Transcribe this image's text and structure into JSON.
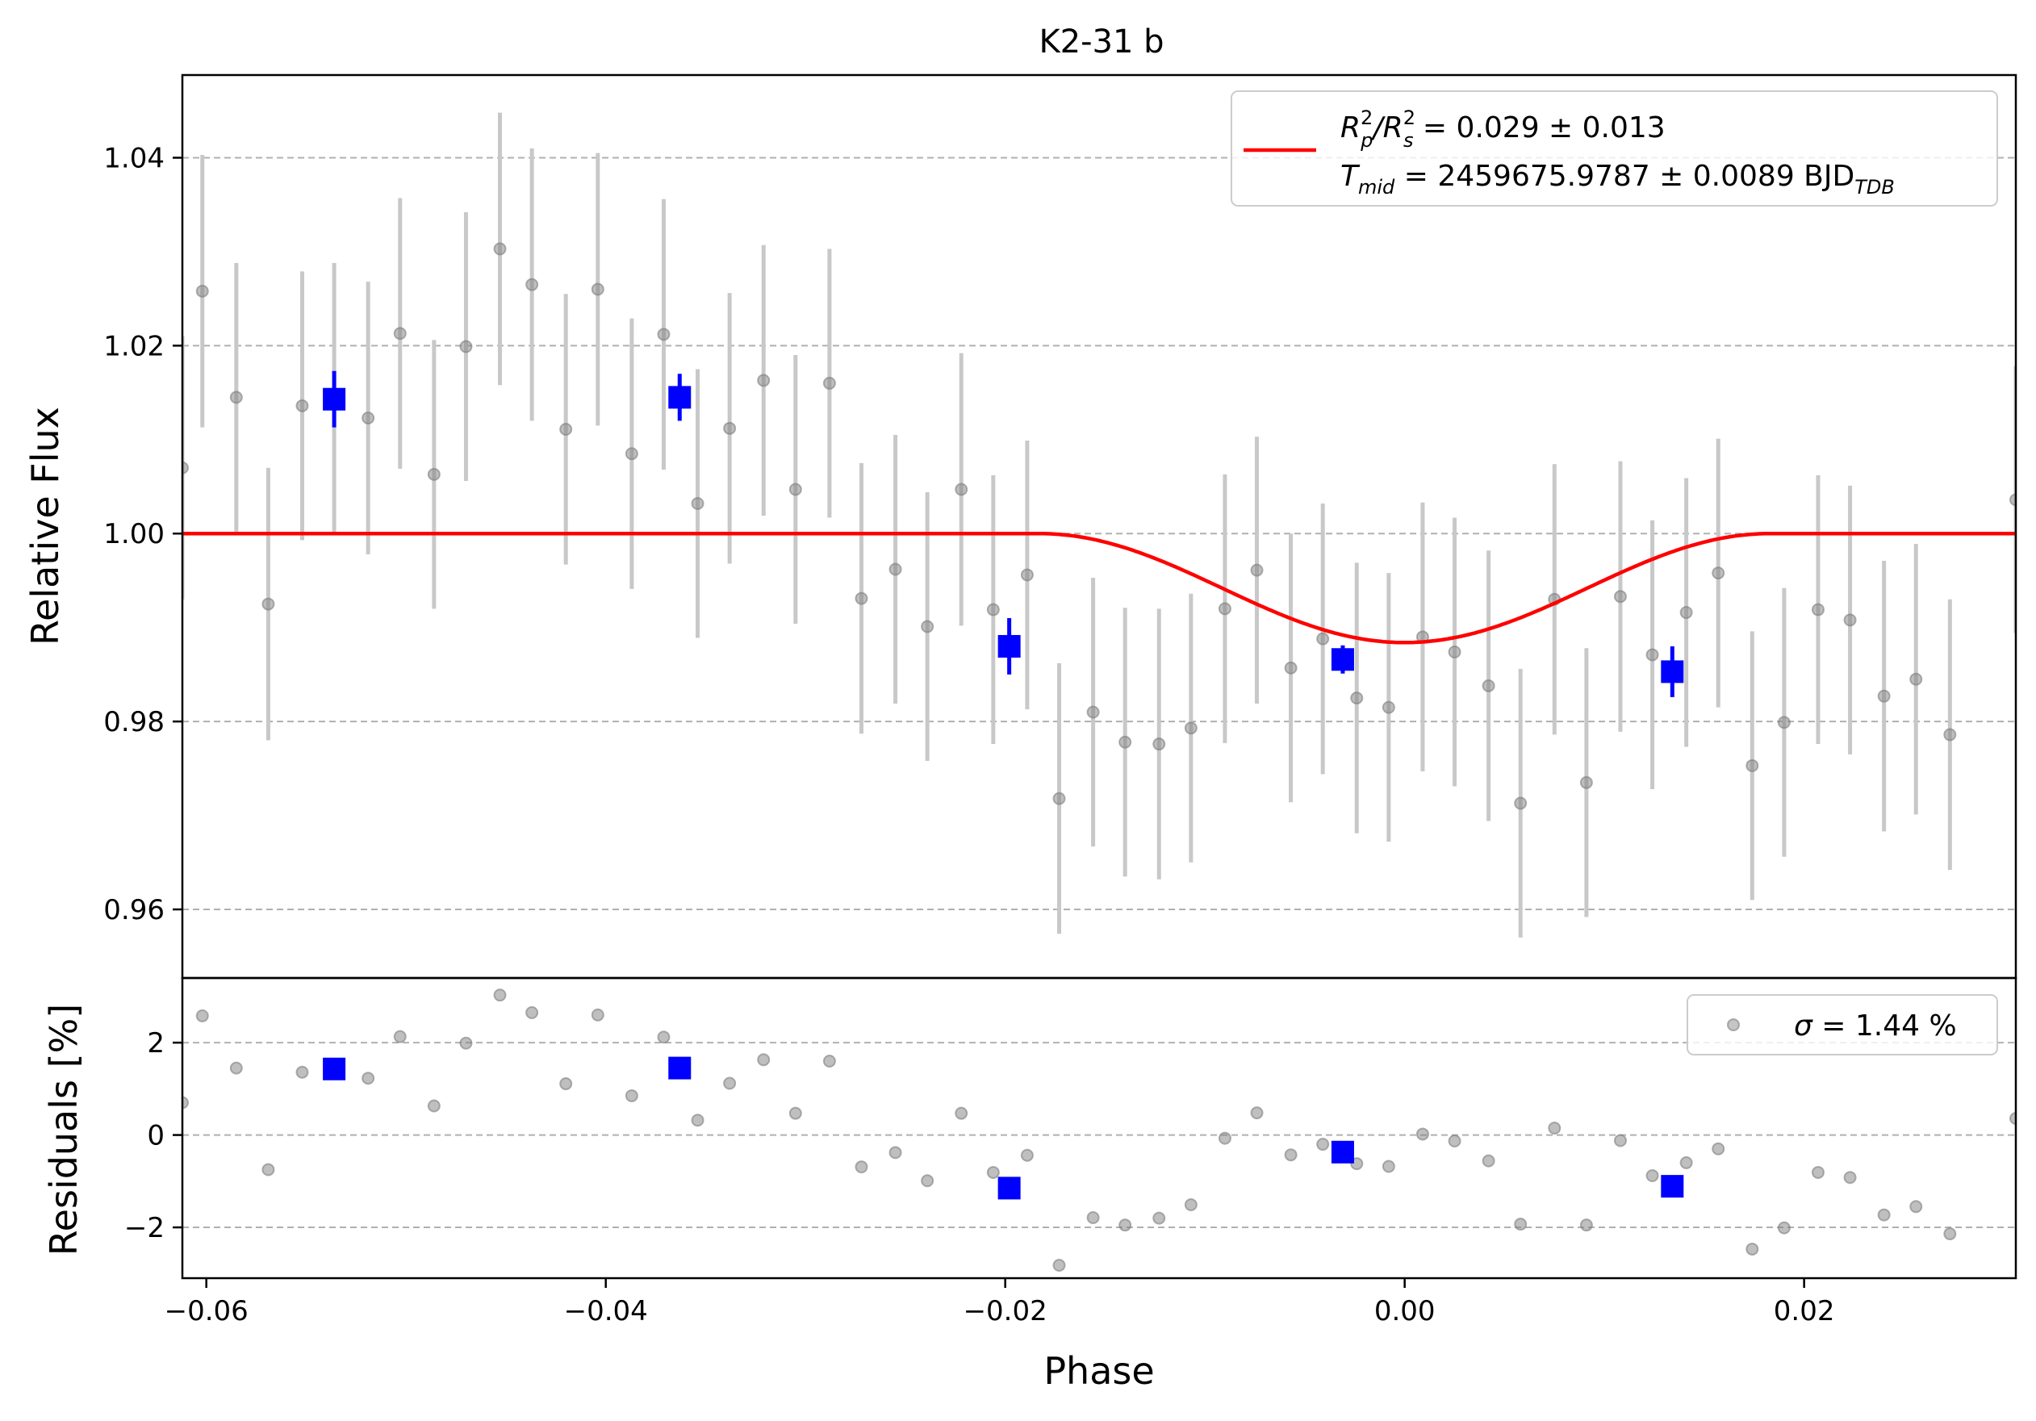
{
  "colors": {
    "raw": "#7f7f7f",
    "raw_errorbar": "#c8c8c8",
    "binned": "#0000ff",
    "model": "#ff0000",
    "grid": "#b0b0b0"
  },
  "chart_data": [
    {
      "panel": "top",
      "type": "scatter",
      "title": "K2-31 b",
      "xlabel": "",
      "ylabel": "Relative Flux",
      "xlim": [
        -0.0612,
        0.0306
      ],
      "ylim": [
        0.9527,
        1.0488
      ],
      "yticks": [
        0.96,
        0.98,
        1.0,
        1.02,
        1.04
      ],
      "ytick_labels": [
        "0.96",
        "0.98",
        "1.00",
        "1.02",
        "1.04"
      ],
      "grid": "horizontal dashed",
      "legend": {
        "placement": "top-right",
        "line1_prefix": "R",
        "line1_sup1": "2",
        "line1_sub1": "p",
        "line1_mid": "/R",
        "line1_sup2": "2",
        "line1_sub2": "s",
        "line1_value": " = 0.029 ± 0.013",
        "line2_prefix": "T",
        "line2_sub": "mid",
        "line2_value": " = 2459675.9787 ± 0.0089 BJD",
        "line2_unit_sub": "TDB"
      },
      "raw": {
        "x": [
          -0.0612,
          -0.0602,
          -0.0585,
          -0.0569,
          -0.0552,
          -0.0536,
          -0.0519,
          -0.0503,
          -0.0486,
          -0.047,
          -0.0453,
          -0.0437,
          -0.042,
          -0.0404,
          -0.0387,
          -0.0371,
          -0.0354,
          -0.0338,
          -0.0321,
          -0.0305,
          -0.0288,
          -0.0272,
          -0.0255,
          -0.0239,
          -0.0222,
          -0.0206,
          -0.0189,
          -0.0173,
          -0.0156,
          -0.014,
          -0.0123,
          -0.0107,
          -0.009,
          -0.0074,
          -0.0057,
          -0.0041,
          -0.0024,
          -0.0008,
          0.0009,
          0.0025,
          0.0042,
          0.0058,
          0.0075,
          0.0091,
          0.0108,
          0.0124,
          0.0141,
          0.0157,
          0.0174,
          0.019,
          0.0207,
          0.0223,
          0.024,
          0.0256,
          0.0273,
          0.0306
        ],
        "y": [
          1.007,
          1.0258,
          1.0145,
          0.9925,
          1.0136,
          1.0144,
          1.0123,
          1.0213,
          1.0063,
          1.0199,
          1.0303,
          1.0265,
          1.0111,
          1.026,
          1.0085,
          1.0212,
          1.0032,
          1.0112,
          1.0163,
          1.0047,
          1.016,
          0.9931,
          0.9962,
          0.9901,
          1.0047,
          0.9919,
          0.9956,
          0.9718,
          0.981,
          0.9778,
          0.9776,
          0.9793,
          0.992,
          0.9961,
          0.9857,
          0.9888,
          0.9825,
          0.9815,
          0.989,
          0.9874,
          0.9838,
          0.9713,
          0.993,
          0.9735,
          0.9933,
          0.9871,
          0.9916,
          0.9958,
          0.9753,
          0.9799,
          0.9919,
          0.9908,
          0.9827,
          0.9845,
          0.9786,
          1.0036
        ],
        "err": [
          0.014,
          0.0145,
          0.0143,
          0.0145,
          0.0143,
          0.0144,
          0.0145,
          0.0144,
          0.0143,
          0.0143,
          0.0145,
          0.0145,
          0.0144,
          0.0145,
          0.0144,
          0.0144,
          0.0143,
          0.0144,
          0.0144,
          0.0143,
          0.0143,
          0.0144,
          0.0143,
          0.0143,
          0.0145,
          0.0143,
          0.0143,
          0.0144,
          0.0143,
          0.0143,
          0.0144,
          0.0143,
          0.0143,
          0.0142,
          0.0143,
          0.0144,
          0.0144,
          0.0143,
          0.0143,
          0.0143,
          0.0144,
          0.0143,
          0.0144,
          0.0143,
          0.0144,
          0.0143,
          0.0143,
          0.0143,
          0.0143,
          0.0143,
          0.0143,
          0.0143,
          0.0144,
          0.0144,
          0.0144,
          0.0142
        ]
      },
      "binned": {
        "x": [
          -0.0536,
          -0.0363,
          -0.0198,
          -0.0031,
          0.0134
        ],
        "y": [
          1.0143,
          1.0145,
          0.988,
          0.9866,
          0.9853
        ],
        "err": [
          0.003,
          0.0025,
          0.003,
          0.0015,
          0.0027
        ]
      },
      "model": {
        "baseline": 1.0,
        "depth": 0.0116,
        "t_mid": 0.0,
        "half_duration": 0.0183
      }
    },
    {
      "panel": "bottom",
      "type": "scatter",
      "xlabel": "Phase",
      "ylabel": "Residuals [%]",
      "xlim": [
        -0.0612,
        0.0306
      ],
      "ylim": [
        -3.1,
        3.4
      ],
      "xticks": [
        -0.06,
        -0.04,
        -0.02,
        0.0,
        0.02
      ],
      "xtick_labels": [
        "−0.06",
        "−0.04",
        "−0.02",
        "0.00",
        "0.02"
      ],
      "yticks": [
        -2,
        0,
        2
      ],
      "ytick_labels": [
        "−2",
        "0",
        "2"
      ],
      "grid": "horizontal dashed",
      "legend": {
        "placement": "top-right",
        "symbol": "σ",
        "text": " = 1.44 %"
      },
      "raw": {
        "x": [
          -0.0612,
          -0.0602,
          -0.0585,
          -0.0569,
          -0.0552,
          -0.0536,
          -0.0519,
          -0.0503,
          -0.0486,
          -0.047,
          -0.0453,
          -0.0437,
          -0.042,
          -0.0404,
          -0.0387,
          -0.0371,
          -0.0354,
          -0.0338,
          -0.0321,
          -0.0305,
          -0.0288,
          -0.0272,
          -0.0255,
          -0.0239,
          -0.0222,
          -0.0206,
          -0.0189,
          -0.0173,
          -0.0156,
          -0.014,
          -0.0123,
          -0.0107,
          -0.009,
          -0.0074,
          -0.0057,
          -0.0041,
          -0.0024,
          -0.0008,
          0.0009,
          0.0025,
          0.0042,
          0.0058,
          0.0075,
          0.0091,
          0.0108,
          0.0124,
          0.0141,
          0.0157,
          0.0174,
          0.019,
          0.0207,
          0.0223,
          0.024,
          0.0256,
          0.0273,
          0.0306
        ],
        "y": [
          0.7,
          2.58,
          1.45,
          -0.75,
          1.36,
          1.44,
          1.23,
          2.13,
          0.63,
          1.99,
          3.03,
          2.65,
          1.11,
          2.6,
          0.85,
          2.12,
          0.32,
          1.12,
          1.63,
          0.47,
          1.6,
          -0.69,
          -0.38,
          -0.99,
          0.47,
          -0.81,
          -0.44,
          -2.82,
          -1.79,
          -1.95,
          -1.8,
          -1.51,
          -0.07,
          0.48,
          -0.43,
          -0.2,
          -0.62,
          -0.68,
          0.02,
          -0.13,
          -0.56,
          -1.93,
          0.15,
          -1.95,
          -0.12,
          -0.88,
          -0.6,
          -0.3,
          -2.47,
          -2.01,
          -0.81,
          -0.92,
          -1.73,
          -1.55,
          -2.14,
          0.36
        ]
      },
      "binned": {
        "x": [
          -0.0536,
          -0.0363,
          -0.0198,
          -0.0031,
          0.0134
        ],
        "y": [
          1.43,
          1.45,
          -1.15,
          -0.37,
          -1.11
        ]
      }
    }
  ]
}
